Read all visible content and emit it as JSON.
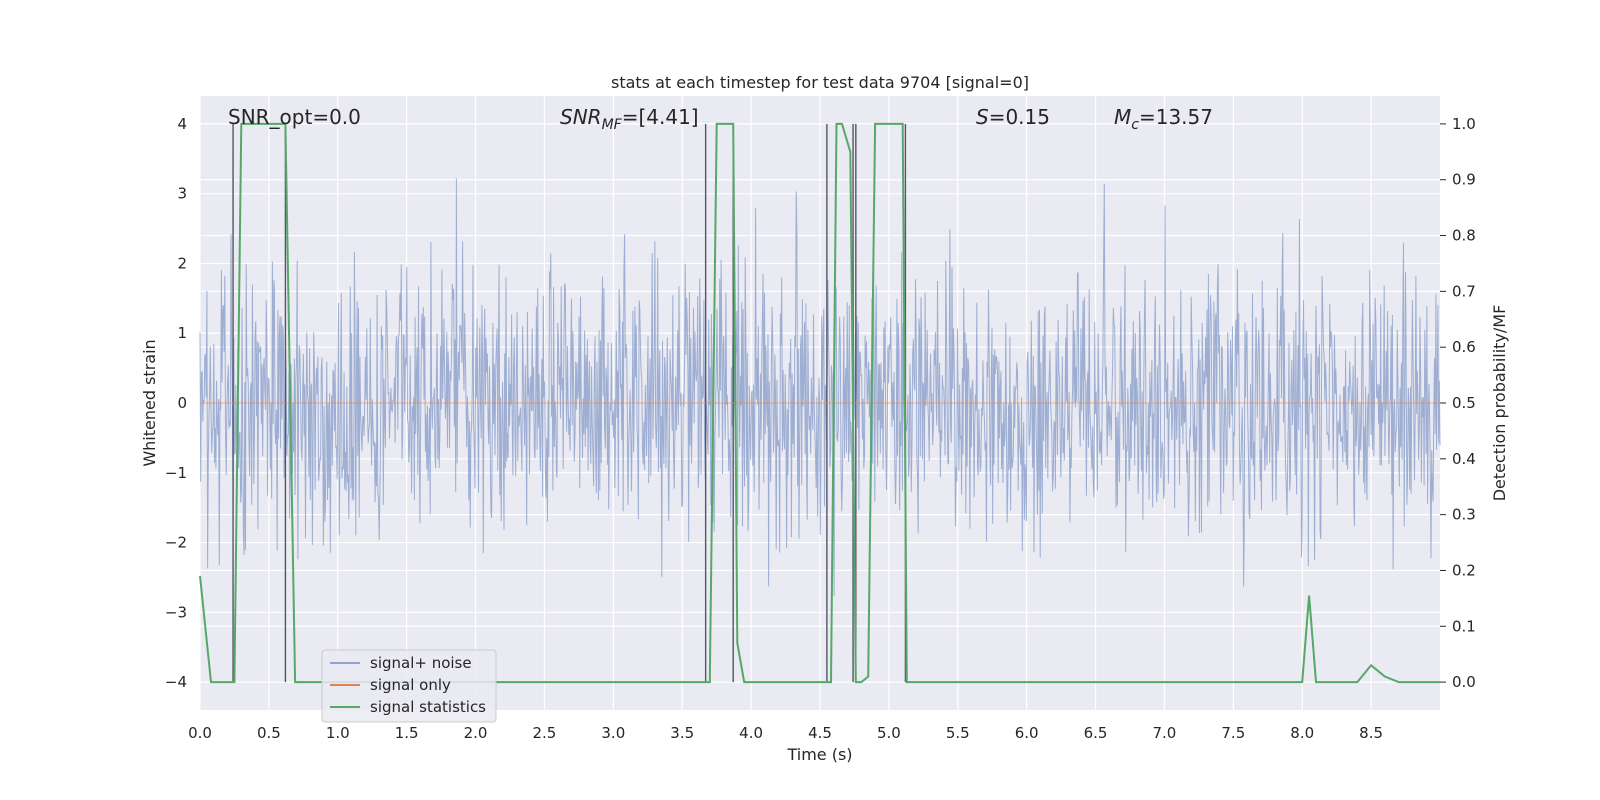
{
  "chart_data": {
    "type": "line",
    "title": "stats at each timestep for test data 9704 [signal=0]",
    "xlabel": "Time (s)",
    "ylabel_left": "Whitened strain",
    "ylabel_right": "Detection probability/MF",
    "xlim": [
      0.0,
      9.0
    ],
    "ylim_left": [
      -4.4,
      4.4
    ],
    "ylim_right": [
      -0.05,
      1.05
    ],
    "xticks": [
      "0.0",
      "0.5",
      "1.0",
      "1.5",
      "2.0",
      "2.5",
      "3.0",
      "3.5",
      "4.0",
      "4.5",
      "5.0",
      "5.5",
      "6.0",
      "6.5",
      "7.0",
      "7.5",
      "8.0",
      "8.5"
    ],
    "yticks_left": [
      "4",
      "3",
      "2",
      "1",
      "0",
      "−1",
      "−2",
      "−3",
      "−4"
    ],
    "yticks_right": [
      "1.0",
      "0.9",
      "0.8",
      "0.7",
      "0.6",
      "0.5",
      "0.4",
      "0.3",
      "0.2",
      "0.1",
      "0.0"
    ],
    "grid": true,
    "legend_position": "lower-left",
    "annotations": {
      "snr_opt": "SNR_opt=0.0",
      "snr_mf_label": "SNR",
      "snr_mf_sub": "MF",
      "snr_mf_value": "=[4.41]",
      "s_label": "S",
      "s_value": "=0.15",
      "mc_label": "M",
      "mc_sub": "c",
      "mc_value": "=13.57"
    },
    "series": [
      {
        "name": "signal+ noise",
        "axis": "left",
        "color": "#8fa3cd",
        "description": "whitened noise, amplitude envelope approximately -4 to +3.8"
      },
      {
        "name": "signal only",
        "axis": "left",
        "color": "#dd8452",
        "values": "flat at 0"
      },
      {
        "name": "signal statistics",
        "axis": "right",
        "color": "#55a868",
        "x": [
          0.0,
          0.08,
          0.15,
          0.25,
          0.3,
          0.35,
          0.6,
          0.62,
          0.69,
          0.75,
          1.0,
          2.0,
          3.0,
          3.68,
          3.7,
          3.75,
          3.8,
          3.87,
          3.9,
          3.95,
          4.0,
          4.5,
          4.58,
          4.62,
          4.66,
          4.72,
          4.76,
          4.8,
          4.85,
          4.9,
          4.95,
          5.0,
          5.1,
          5.13,
          5.2,
          5.3,
          6.0,
          7.0,
          7.98,
          8.0,
          8.05,
          8.1,
          8.15,
          8.3,
          8.4,
          8.5,
          8.6,
          8.7,
          9.0
        ],
        "values": [
          0.19,
          0.0,
          0.0,
          0.0,
          1.0,
          1.0,
          1.0,
          1.0,
          0.0,
          0.0,
          0.0,
          0.0,
          0.0,
          0.0,
          0.0,
          1.0,
          1.0,
          1.0,
          0.07,
          0.0,
          0.0,
          0.0,
          0.0,
          1.0,
          1.0,
          0.95,
          0.0,
          0.0,
          0.01,
          1.0,
          1.0,
          1.0,
          1.0,
          0.0,
          0.0,
          0.0,
          0.0,
          0.0,
          0.0,
          0.0,
          0.155,
          0.0,
          0.0,
          0.0,
          0.0,
          0.03,
          0.01,
          0.0,
          0.0
        ]
      }
    ],
    "vertical_markers_x": [
      0.24,
      0.62,
      3.67,
      3.87,
      4.55,
      4.74,
      4.76,
      5.12
    ]
  }
}
